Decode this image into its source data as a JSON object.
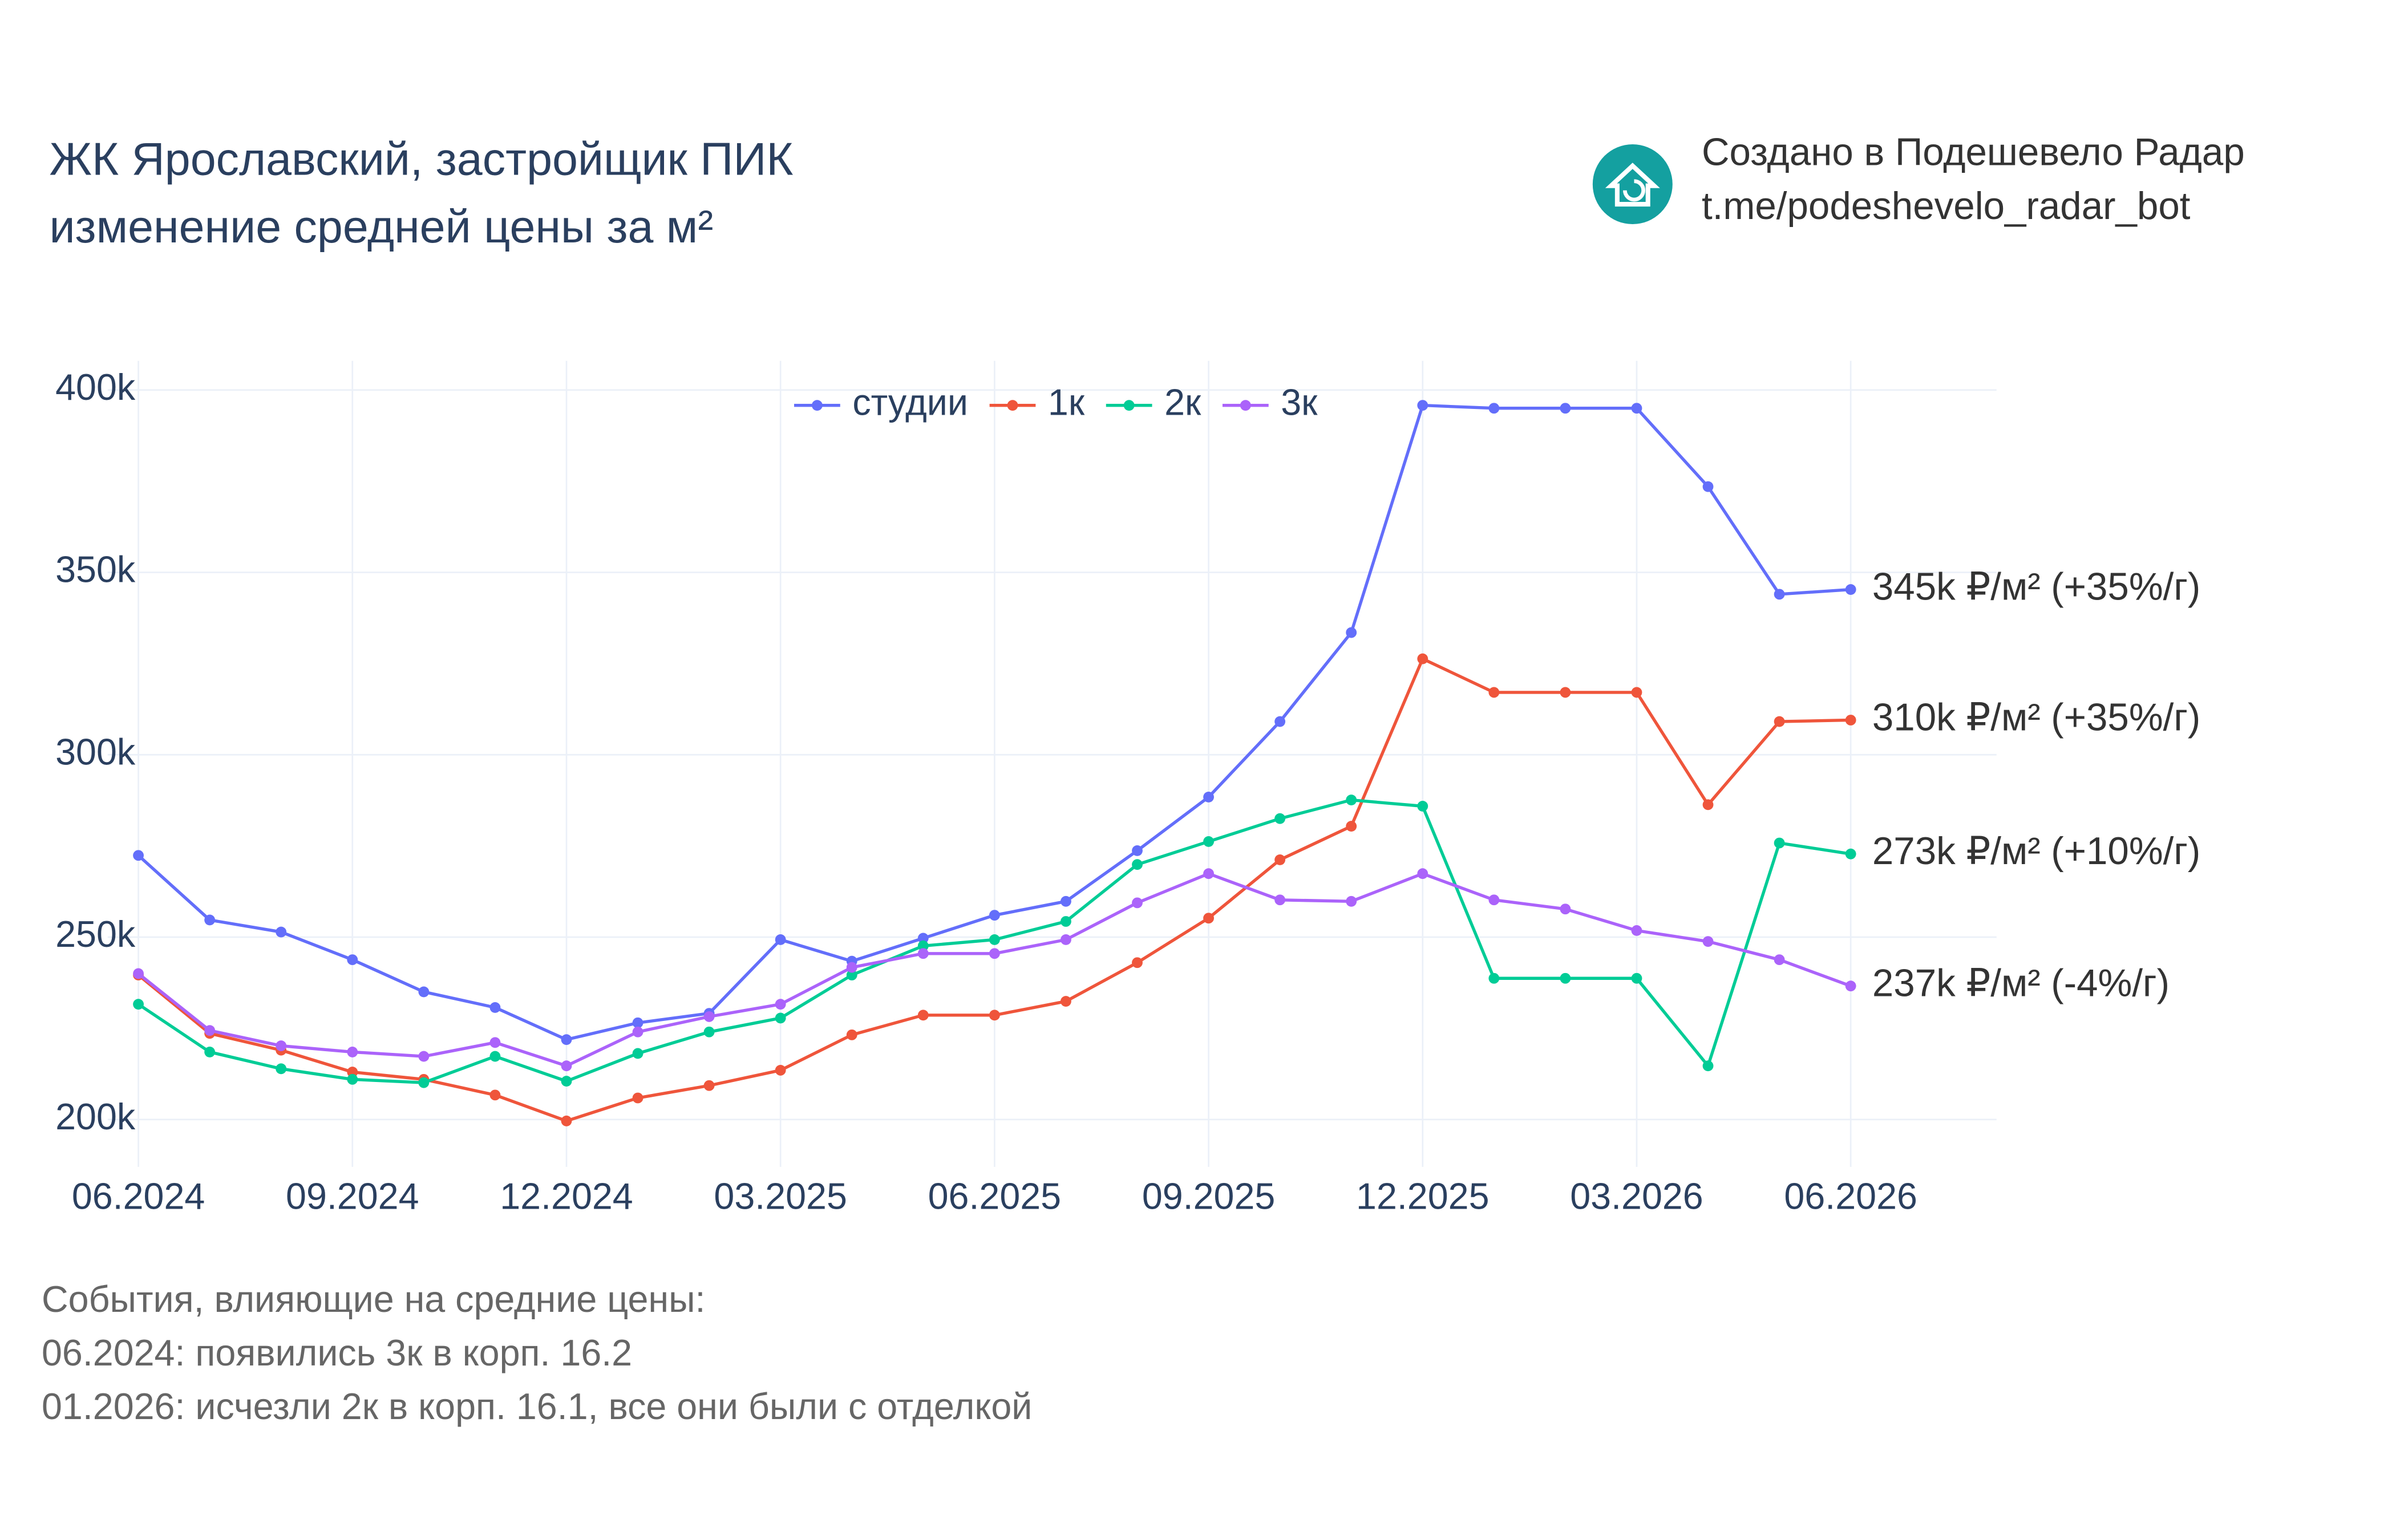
{
  "chart_data": {
    "type": "line",
    "title": [
      "ЖК Ярославский, застройщик ПИК",
      "изменение средней цены за м²"
    ],
    "credit": [
      "Создано в Подешевело Радар",
      "t.me/podeshevelo_radar_bot"
    ],
    "notes": [
      "События, влияющие на средние цены:",
      "06.2024: появились 3к в корп. 16.2",
      "01.2026: исчезли 2к в корп. 16.1, все они были с отделкой"
    ],
    "x": [
      "06.2024",
      "07.2024",
      "08.2024",
      "09.2024",
      "10.2024",
      "11.2024",
      "12.2024",
      "01.2025",
      "02.2025",
      "03.2025",
      "04.2025",
      "05.2025",
      "06.2025",
      "07.2025",
      "08.2025",
      "09.2025",
      "10.2025",
      "11.2025",
      "12.2025",
      "01.2026",
      "02.2026",
      "03.2026",
      "04.2026",
      "05.2026",
      "06.2026"
    ],
    "xticks": [
      "06.2024",
      "09.2024",
      "12.2024",
      "03.2025",
      "06.2025",
      "09.2025",
      "12.2025",
      "03.2026",
      "06.2026"
    ],
    "ylim": [
      187000,
      408000
    ],
    "yticks": [
      {
        "value": 200000,
        "label": "200k"
      },
      {
        "value": 250000,
        "label": "250k"
      },
      {
        "value": 300000,
        "label": "300k"
      },
      {
        "value": 350000,
        "label": "350k"
      },
      {
        "value": 400000,
        "label": "400k"
      }
    ],
    "grid": true,
    "legend": "top",
    "series": [
      {
        "name": "студии",
        "color": "#636efa",
        "end_label": "345k ₽/м² (+35%/г)",
        "values": [
          272400,
          254700,
          251400,
          243800,
          235000,
          230700,
          221900,
          226500,
          229100,
          249300,
          243400,
          249700,
          256000,
          259800,
          273700,
          288400,
          309100,
          333500,
          395800,
          395000,
          395000,
          395000,
          373500,
          344000,
          345300
        ]
      },
      {
        "name": "1к",
        "color": "#ef553b",
        "end_label": "310k ₽/м² (+35%/г)",
        "values": [
          239600,
          223600,
          219000,
          213000,
          211000,
          206700,
          199600,
          205900,
          209300,
          213500,
          223200,
          228600,
          228600,
          232400,
          243000,
          255200,
          271200,
          280400,
          326300,
          317100,
          317100,
          317100,
          286300,
          309100,
          309500
        ]
      },
      {
        "name": "2к",
        "color": "#00cc96",
        "end_label": "273k ₽/м² (+10%/г)",
        "values": [
          231600,
          218500,
          213900,
          211000,
          210100,
          217300,
          210500,
          218100,
          224000,
          227800,
          239600,
          247600,
          249300,
          254300,
          269900,
          276200,
          282500,
          287600,
          285900,
          238700,
          238700,
          238700,
          214700,
          275800,
          272800
        ]
      },
      {
        "name": "3к",
        "color": "#ab63fa",
        "end_label": "237k ₽/м² (-4%/г)",
        "values": [
          240000,
          224400,
          220200,
          218500,
          217300,
          221100,
          214700,
          224000,
          228200,
          231600,
          241700,
          245500,
          245500,
          249300,
          259400,
          267400,
          260200,
          259800,
          267400,
          260200,
          257700,
          251800,
          248800,
          243800,
          236600
        ]
      }
    ]
  }
}
